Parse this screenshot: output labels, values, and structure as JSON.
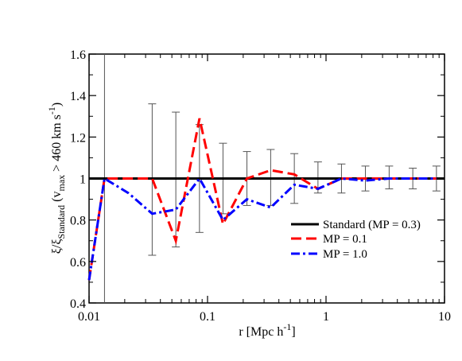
{
  "chart_data": {
    "type": "line",
    "title": "",
    "xlabel": "r [Mpc h⁻¹]",
    "ylabel": "ξ/ξ_Standard (v_max > 460 km s⁻¹)",
    "xscale": "log",
    "xlim": [
      0.01,
      10
    ],
    "ylim": [
      0.4,
      1.6
    ],
    "grid": false,
    "legend_position": "center-right",
    "xticks": [
      0.01,
      0.1,
      1,
      10
    ],
    "xtick_labels": [
      "0.01",
      "0.1",
      "1",
      "10"
    ],
    "yticks": [
      0.4,
      0.6,
      0.8,
      1.0,
      1.2,
      1.4,
      1.6
    ],
    "ytick_labels": [
      "0.4",
      "0.6",
      "0.8",
      "1",
      "1.2",
      "1.4",
      "1.6"
    ],
    "ylabel_parts": {
      "main": "ξ/ξ",
      "sub1": "Standard",
      "open": " (v",
      "sub2": "max",
      "mid": " > 460 km s",
      "sup": "-1",
      "close": ")"
    },
    "xlabel_parts": {
      "main": "r [Mpc h",
      "sup": "-1",
      "close": "]"
    },
    "series": [
      {
        "name": "Standard (MP = 0.3)",
        "color": "#000000",
        "style": "solid",
        "x": [
          0.01,
          10
        ],
        "y": [
          1.0,
          1.0
        ]
      },
      {
        "name": "MP = 0.1",
        "color": "#ff0000",
        "style": "dashed",
        "x": [
          0.01,
          0.0135,
          0.0215,
          0.0341,
          0.054,
          0.0855,
          0.135,
          0.215,
          0.341,
          0.54,
          0.855,
          1.35,
          2.15,
          3.41,
          5.4,
          8.55
        ],
        "y": [
          0.51,
          1.0,
          1.0,
          1.0,
          0.7,
          1.29,
          0.78,
          1.0,
          1.04,
          1.02,
          0.95,
          1.0,
          1.0,
          1.0,
          1.0,
          1.0
        ]
      },
      {
        "name": "MP = 1.0",
        "color": "#0000ff",
        "style": "dashdot",
        "x": [
          0.01,
          0.0135,
          0.0215,
          0.0341,
          0.054,
          0.0855,
          0.135,
          0.215,
          0.341,
          0.54,
          0.855,
          1.35,
          2.15,
          3.41,
          5.4,
          8.55
        ],
        "y": [
          0.51,
          1.0,
          0.93,
          0.83,
          0.85,
          1.0,
          0.8,
          0.9,
          0.86,
          0.97,
          0.95,
          1.0,
          0.99,
          1.0,
          1.0,
          1.0
        ]
      }
    ],
    "error_bars": {
      "x": [
        0.0135,
        0.0341,
        0.054,
        0.0855,
        0.135,
        0.215,
        0.341,
        0.54,
        0.855,
        1.35,
        2.15,
        3.41,
        5.4,
        8.55
      ],
      "y": [
        1.0,
        1.0,
        1.0,
        1.0,
        1.0,
        1.0,
        1.0,
        1.0,
        1.0,
        1.0,
        1.0,
        1.0,
        1.0,
        1.0
      ],
      "low": [
        0.4,
        0.63,
        0.67,
        0.74,
        0.83,
        0.87,
        0.87,
        0.88,
        0.93,
        0.93,
        0.94,
        0.95,
        0.95,
        0.94
      ],
      "high": [
        1.6,
        1.36,
        1.32,
        1.26,
        1.17,
        1.13,
        1.14,
        1.12,
        1.08,
        1.07,
        1.06,
        1.06,
        1.05,
        1.06
      ]
    }
  }
}
